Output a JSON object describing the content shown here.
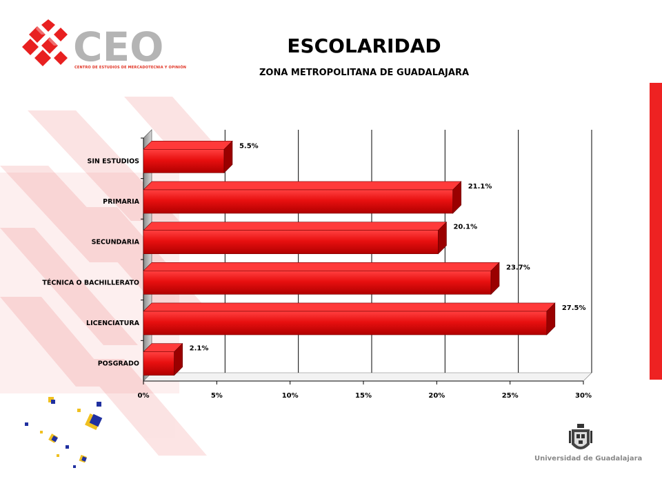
{
  "header": {
    "title": "ESCOLARIDAD",
    "subtitle": "ZONA METROPOLITANA DE GUADALAJARA"
  },
  "logo": {
    "name": "CEO",
    "tagline": "CENTRO DE ESTUDIOS DE MERCADOTECNIA Y OPINIÓN"
  },
  "institution": "Universidad de Guadalajara",
  "colors": {
    "bar": "#e81010",
    "bar_dark": "#9a0000",
    "accent": "#ee2222"
  },
  "chart_data": {
    "type": "bar",
    "orientation": "horizontal",
    "categories": [
      "SIN ESTUDIOS",
      "PRIMARIA",
      "SECUNDARIA",
      "TÉCNICA O BACHILLERATO",
      "LICENCIATURA",
      "POSGRADO"
    ],
    "values": [
      5.5,
      21.1,
      20.1,
      23.7,
      27.5,
      2.1
    ],
    "value_labels": [
      "5.5%",
      "21.1%",
      "20.1%",
      "23.7%",
      "27.5%",
      "2.1%"
    ],
    "xlim": [
      0,
      30
    ],
    "xticks": [
      0,
      5,
      10,
      15,
      20,
      25,
      30
    ],
    "xtick_labels": [
      "0%",
      "5%",
      "10%",
      "15%",
      "20%",
      "25%",
      "30%"
    ],
    "grid": true,
    "style": "3d"
  }
}
